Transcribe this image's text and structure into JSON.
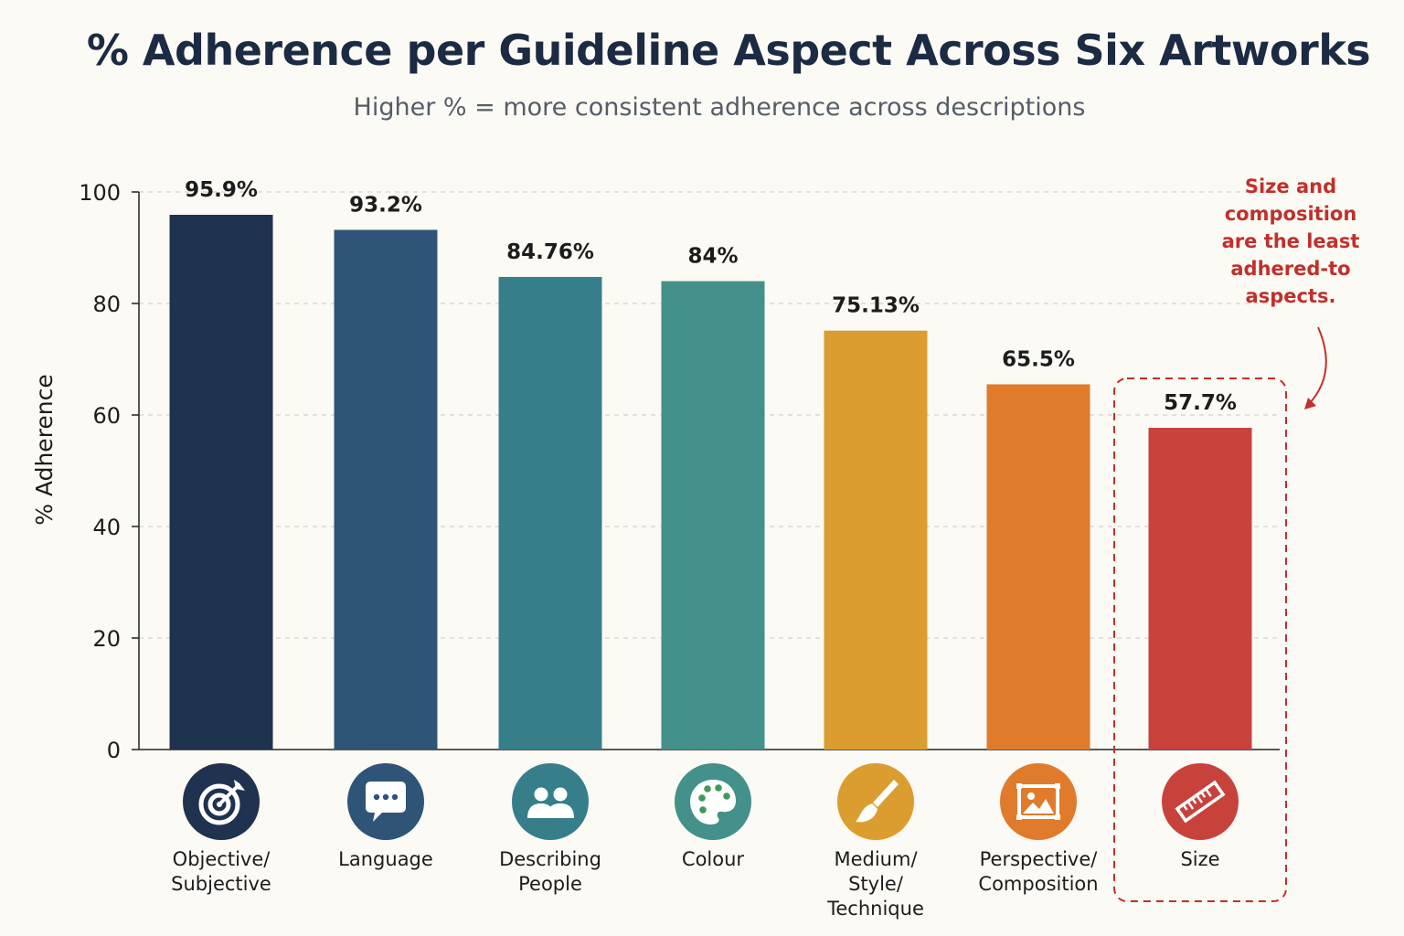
{
  "title": "% Adherence per Guideline Aspect Across Six Artworks",
  "subtitle": "Higher % = more consistent adherence across descriptions",
  "chart_data": {
    "type": "bar",
    "title": "% Adherence per Guideline Aspect Across Six Artworks",
    "subtitle": "Higher % = more consistent adherence across descriptions",
    "xlabel": "",
    "ylabel": "% Adherence",
    "ylim": [
      0,
      100
    ],
    "yticks": [
      0,
      20,
      40,
      60,
      80,
      100
    ],
    "grid": true,
    "categories": [
      [
        "Objective/",
        "Subjective"
      ],
      [
        "Language"
      ],
      [
        "Describing",
        "People"
      ],
      [
        "Colour"
      ],
      [
        "Medium/",
        "Style/",
        "Technique"
      ],
      [
        "Perspective/",
        "Composition"
      ],
      [
        "Size"
      ]
    ],
    "values": [
      95.9,
      93.2,
      84.76,
      84,
      75.13,
      65.5,
      57.7
    ],
    "value_labels": [
      "95.9%",
      "93.2%",
      "84.76%",
      "84%",
      "75.13%",
      "65.5%",
      "57.7%"
    ],
    "colors": [
      "#1f3250",
      "#2e5478",
      "#367f8a",
      "#43918a",
      "#dc9d30",
      "#e07b2c",
      "#c8423c"
    ],
    "icons": [
      "target-icon",
      "speech-bubble-icon",
      "people-icon",
      "palette-icon",
      "paintbrush-icon",
      "picture-icon",
      "ruler-icon"
    ],
    "highlight_index": 6,
    "annotation": {
      "lines": [
        "Size and",
        "composition",
        "are the least",
        "adhered-to",
        "aspects."
      ],
      "color": "#c0302c"
    }
  }
}
